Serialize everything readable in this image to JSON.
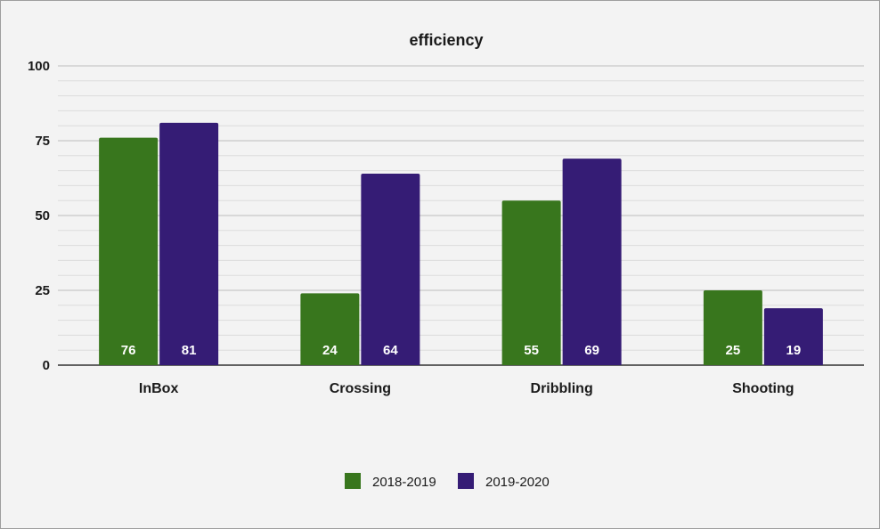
{
  "chart_data": {
    "type": "bar",
    "title": "efficiency",
    "xlabel": "",
    "ylabel": "",
    "categories": [
      "InBox",
      "Crossing",
      "Dribbling",
      "Shooting"
    ],
    "series": [
      {
        "name": "2018-2019",
        "values": [
          76,
          24,
          55,
          25
        ],
        "color": "#38761d"
      },
      {
        "name": "2019-2020",
        "values": [
          81,
          64,
          69,
          19
        ],
        "color": "#351c75"
      }
    ],
    "ylim": [
      0,
      100
    ],
    "yticks": [
      "0",
      "25",
      "50",
      "75",
      "100"
    ],
    "ytick_values": [
      0,
      25,
      50,
      75,
      100
    ],
    "minor_gridlines_per_major": 5,
    "grid": true,
    "data_labels": true,
    "legend_position": "bottom",
    "colors": {
      "background": "#f3f3f3",
      "gridline": "#cfcfcf",
      "axis": "#333333"
    }
  }
}
